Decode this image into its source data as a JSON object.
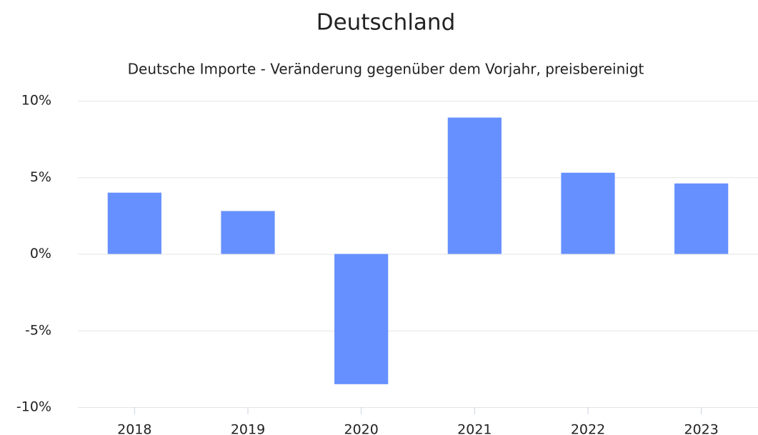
{
  "chart_data": {
    "type": "bar",
    "title": "Deutschland",
    "subtitle": "Deutsche Importe - Veränderung gegenüber dem Vorjahr, preisbereinigt",
    "categories": [
      "2018",
      "2019",
      "2020",
      "2021",
      "2022",
      "2023"
    ],
    "values": [
      4.0,
      2.8,
      -8.5,
      8.9,
      5.3,
      4.6
    ],
    "color": "#6690ff",
    "ylim": [
      -10,
      10
    ],
    "yticks": [
      {
        "value": -10,
        "label": "-10%"
      },
      {
        "value": -5,
        "label": "-5%"
      },
      {
        "value": 0,
        "label": "0%"
      },
      {
        "value": 5,
        "label": "5%"
      },
      {
        "value": 10,
        "label": "10%"
      }
    ],
    "grid": true
  }
}
